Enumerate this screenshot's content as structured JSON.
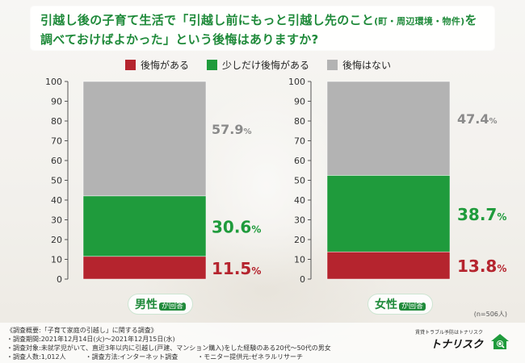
{
  "title": {
    "line1_a": "引越し後の子育て生活で「引越し前にもっと引越し先のこと",
    "line1_small": "(町・周辺環境・物件)",
    "line1_b": "を",
    "line2": "調べておけばよかった」という後悔はありますか?"
  },
  "legend": [
    {
      "label": "後悔がある",
      "color": "#b5242e"
    },
    {
      "label": "少しだけ後悔がある",
      "color": "#1f9b3c"
    },
    {
      "label": "後悔はない",
      "color": "#b3b3b3"
    }
  ],
  "chart_data": [
    {
      "type": "bar",
      "stacked": true,
      "group_label": "男性",
      "group_label_suffix": "が回答",
      "ylim": [
        0,
        100
      ],
      "yticks": [
        "0",
        "10",
        "20",
        "30",
        "40",
        "50",
        "60",
        "70",
        "80",
        "90",
        "100"
      ],
      "series": [
        {
          "name": "後悔がある",
          "value": 11.5,
          "label": "11.5%"
        },
        {
          "name": "少しだけ後悔がある",
          "value": 30.6,
          "label": "30.6%"
        },
        {
          "name": "後悔はない",
          "value": 57.9,
          "label": "57.9%"
        }
      ]
    },
    {
      "type": "bar",
      "stacked": true,
      "group_label": "女性",
      "group_label_suffix": "が回答",
      "ylim": [
        0,
        100
      ],
      "yticks": [
        "0",
        "10",
        "20",
        "30",
        "40",
        "50",
        "60",
        "70",
        "80",
        "90",
        "100"
      ],
      "series": [
        {
          "name": "後悔がある",
          "value": 13.8,
          "label": "13.8%"
        },
        {
          "name": "少しだけ後悔がある",
          "value": 38.7,
          "label": "38.7%"
        },
        {
          "name": "後悔はない",
          "value": 47.4,
          "label": "47.4%"
        }
      ]
    }
  ],
  "sample_note": "(n=506人)",
  "footer": {
    "lines": [
      "《調査概要:「子育て家庭の引越し」に関する調査》",
      "・調査期間:2021年12月14日(火)〜2021年12月15日(水)",
      "・調査対象:未就学児がいて、直近3年以内に引越し(戸建、マンション購入)をした経験のある20代〜50代の男女",
      "・調査人数:1,012人　　　・調査方法:インターネット調査　　　・モニター提供元:ゼネラルリサーチ"
    ],
    "brand_tag": "賃貸トラブル予防はトナリスク",
    "brand_name": "トナリスク"
  }
}
